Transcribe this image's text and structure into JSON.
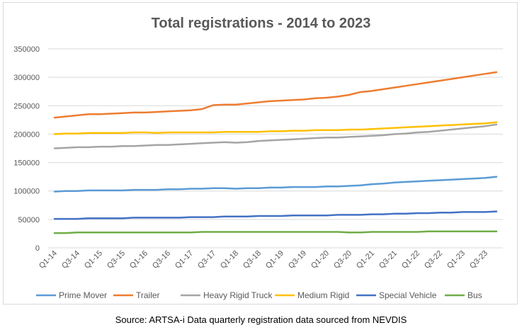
{
  "chart_data": {
    "type": "line",
    "title": "Total registrations - 2014 to 2023",
    "xlabel": "",
    "ylabel": "",
    "ylim": [
      0,
      350000
    ],
    "yticks": [
      "0",
      "50000",
      "100000",
      "150000",
      "200000",
      "250000",
      "300000",
      "350000"
    ],
    "x": [
      "Q1-14",
      "Q2-14",
      "Q3-14",
      "Q4-14",
      "Q1-15",
      "Q2-15",
      "Q3-15",
      "Q4-15",
      "Q1-16",
      "Q2-16",
      "Q3-16",
      "Q4-16",
      "Q1-17",
      "Q2-17",
      "Q3-17",
      "Q4-17",
      "Q1-18",
      "Q2-18",
      "Q3-18",
      "Q4-18",
      "Q1-19",
      "Q2-19",
      "Q3-19",
      "Q4-19",
      "Q1-20",
      "Q2-20",
      "Q3-20",
      "Q4-20",
      "Q1-21",
      "Q2-21",
      "Q3-21",
      "Q4-21",
      "Q1-22",
      "Q2-22",
      "Q3-22",
      "Q4-22",
      "Q1-23",
      "Q2-23",
      "Q3-23",
      "Q4-23"
    ],
    "xtick_labels": [
      "Q1-14",
      "Q3-14",
      "Q1-15",
      "Q3-15",
      "Q1-16",
      "Q3-16",
      "Q1-17",
      "Q3-17",
      "Q1-18",
      "Q3-18",
      "Q1-19",
      "Q3-19",
      "Q1-20",
      "Q3-20",
      "Q1-21",
      "Q3-21",
      "Q1-22",
      "Q3-22",
      "Q1-23",
      "Q3-23"
    ],
    "grid": true,
    "legend_position": "bottom",
    "series": [
      {
        "name": "Prime Mover",
        "color": "#5B9BD5",
        "values": [
          99000,
          100000,
          100000,
          101000,
          101000,
          101000,
          101000,
          102000,
          102000,
          102000,
          103000,
          103000,
          104000,
          104000,
          105000,
          105000,
          104000,
          105000,
          105000,
          106000,
          106000,
          107000,
          107000,
          107000,
          108000,
          108000,
          109000,
          110000,
          112000,
          113000,
          115000,
          116000,
          117000,
          118000,
          119000,
          120000,
          121000,
          122000,
          123000,
          125000
        ]
      },
      {
        "name": "Trailer",
        "color": "#ED7D31",
        "values": [
          229000,
          231000,
          233000,
          235000,
          235000,
          236000,
          237000,
          238000,
          238000,
          239000,
          240000,
          241000,
          242000,
          244000,
          251000,
          252000,
          252000,
          254000,
          256000,
          258000,
          259000,
          260000,
          261000,
          263000,
          264000,
          266000,
          269000,
          274000,
          276000,
          279000,
          282000,
          285000,
          288000,
          291000,
          294000,
          297000,
          300000,
          303000,
          306000,
          309000
        ]
      },
      {
        "name": "Heavy Rigid Truck",
        "color": "#A5A5A5",
        "values": [
          175000,
          176000,
          177000,
          177000,
          178000,
          178000,
          179000,
          179000,
          180000,
          181000,
          181000,
          182000,
          183000,
          184000,
          185000,
          186000,
          185000,
          186000,
          188000,
          189000,
          190000,
          191000,
          192000,
          193000,
          194000,
          194000,
          195000,
          196000,
          197000,
          198000,
          200000,
          201000,
          203000,
          204000,
          206000,
          208000,
          210000,
          212000,
          214000,
          217000
        ]
      },
      {
        "name": "Medium Rigid",
        "color": "#FFC000",
        "values": [
          200000,
          201000,
          201000,
          202000,
          202000,
          202000,
          202000,
          203000,
          203000,
          202000,
          203000,
          203000,
          203000,
          203000,
          203000,
          204000,
          204000,
          204000,
          204000,
          205000,
          205000,
          206000,
          206000,
          207000,
          207000,
          207000,
          208000,
          208000,
          209000,
          210000,
          211000,
          212000,
          213000,
          214000,
          215000,
          216000,
          217000,
          218000,
          219000,
          221000
        ]
      },
      {
        "name": "Special Vehicle",
        "color": "#4472C4",
        "values": [
          51000,
          51000,
          51000,
          52000,
          52000,
          52000,
          52000,
          53000,
          53000,
          53000,
          53000,
          53000,
          54000,
          54000,
          54000,
          55000,
          55000,
          55000,
          56000,
          56000,
          56000,
          57000,
          57000,
          57000,
          57000,
          58000,
          58000,
          58000,
          59000,
          59000,
          60000,
          60000,
          61000,
          61000,
          62000,
          62000,
          63000,
          63000,
          63000,
          64000
        ]
      },
      {
        "name": "Bus",
        "color": "#70AD47",
        "values": [
          26000,
          26000,
          27000,
          27000,
          27000,
          27000,
          27000,
          27000,
          27000,
          27000,
          27000,
          27000,
          27000,
          28000,
          28000,
          28000,
          28000,
          28000,
          28000,
          28000,
          28000,
          28000,
          28000,
          28000,
          28000,
          28000,
          27000,
          27000,
          28000,
          28000,
          28000,
          28000,
          28000,
          29000,
          29000,
          29000,
          29000,
          29000,
          29000,
          29000
        ]
      }
    ]
  },
  "source": "Source: ARTSA-i Data quarterly registration data sourced from NEVDIS"
}
